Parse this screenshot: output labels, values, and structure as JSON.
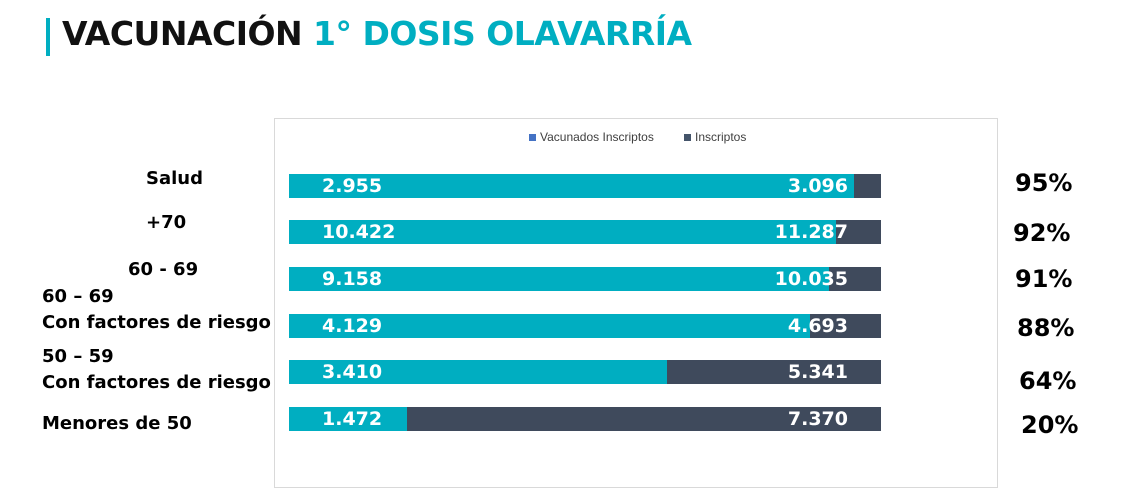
{
  "header": {
    "title_main": "VACUNACIÓN",
    "title_sub": "1° DOSIS OLAVARRÍA"
  },
  "colors": {
    "accent": "#00AEC1",
    "vaccinated": "#00AEC1",
    "registered": "#3F4A5C",
    "legend_vaccinated": "#4472C4",
    "legend_registered": "#44546A"
  },
  "chart_data": {
    "type": "bar",
    "orientation": "horizontal",
    "stacked": "overlay",
    "legend": [
      "Vacunados Inscriptos",
      "Inscriptos"
    ],
    "legend_position": "top",
    "categories": [
      [
        "Salud"
      ],
      [
        "+70"
      ],
      [
        "60 - 69"
      ],
      [
        "60 – 69",
        "Con factores de riesgo"
      ],
      [
        "50 – 59",
        "Con factores de riesgo"
      ],
      [
        "Menores de 50"
      ]
    ],
    "series": [
      {
        "name": "Vacunados Inscriptos",
        "values": [
          2955,
          10422,
          9158,
          4129,
          3410,
          1472
        ],
        "labels": [
          "2.955",
          "10.422",
          "9.158",
          "4.129",
          "3.410",
          "1.472"
        ]
      },
      {
        "name": "Inscriptos",
        "values": [
          3096,
          11287,
          10035,
          4693,
          5341,
          7370
        ],
        "labels": [
          "3.096",
          "11.287",
          "10.035",
          "4.693",
          "5.341",
          "7.370"
        ]
      }
    ],
    "percentages": [
      "95%",
      "92%",
      "91%",
      "88%",
      "64%",
      "20%"
    ],
    "grid": false
  }
}
